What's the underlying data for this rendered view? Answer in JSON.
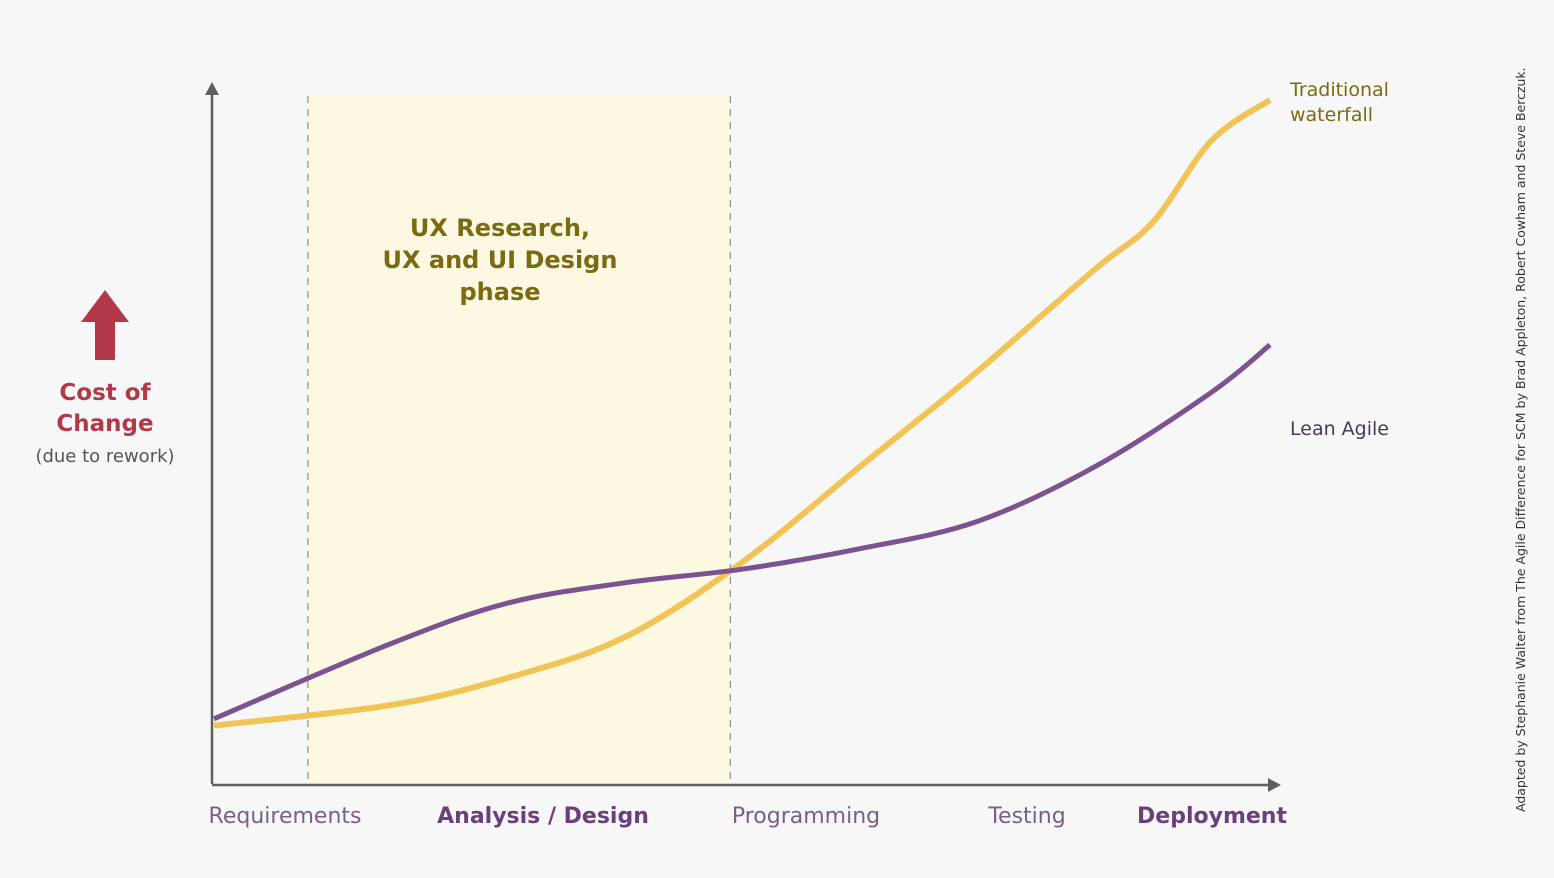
{
  "chart_data": {
    "type": "line",
    "categories": [
      "Requirements",
      "Analysis / Design",
      "Programming",
      "Testing",
      "Deployment"
    ],
    "emphasized_categories": [
      "Analysis / Design",
      "Deployment"
    ],
    "y_axis": {
      "title_lines": [
        "Cost of",
        "Change"
      ],
      "subtitle": "(due to rework)",
      "ticks": "none"
    },
    "highlight_region": {
      "label_lines": [
        "UX Research,",
        "UX and UI Design",
        "phase"
      ],
      "from_stage": 0.15,
      "to_stage": 1.95,
      "color": "#fdf8e2"
    },
    "x_range": [
      -0.25,
      4.25
    ],
    "y_range": [
      0,
      100
    ],
    "series": [
      {
        "name": "Traditional waterfall",
        "label_lines": [
          "Traditional",
          "waterfall"
        ],
        "color": "#f0c457",
        "x": [
          -0.25,
          0.5,
          1.0,
          1.5,
          2.0,
          2.5,
          3.0,
          3.5,
          3.75,
          4.0,
          4.25
        ],
        "y": [
          8,
          11,
          15,
          21,
          32,
          46,
          60,
          75,
          82,
          94,
          100
        ]
      },
      {
        "name": "Lean Agile",
        "label_lines": [
          "Lean Agile"
        ],
        "color": "#7c5291",
        "x": [
          -0.25,
          0.5,
          1.0,
          1.5,
          2.0,
          2.5,
          3.0,
          3.5,
          4.0,
          4.25
        ],
        "y": [
          9,
          20,
          26,
          29,
          31,
          34,
          38,
          46,
          57,
          64
        ]
      }
    ],
    "grid": false,
    "legend": "labels at right end of each line"
  },
  "credit": "Adapted by Stephanie Walter from The Agile Difference for SCM by Brad Appleton, Robert Cowham and Steve Berczuk.",
  "colors": {
    "axis": "#5f5f5f",
    "divider": "#7a7a7a",
    "arrow": "#b23a48"
  }
}
